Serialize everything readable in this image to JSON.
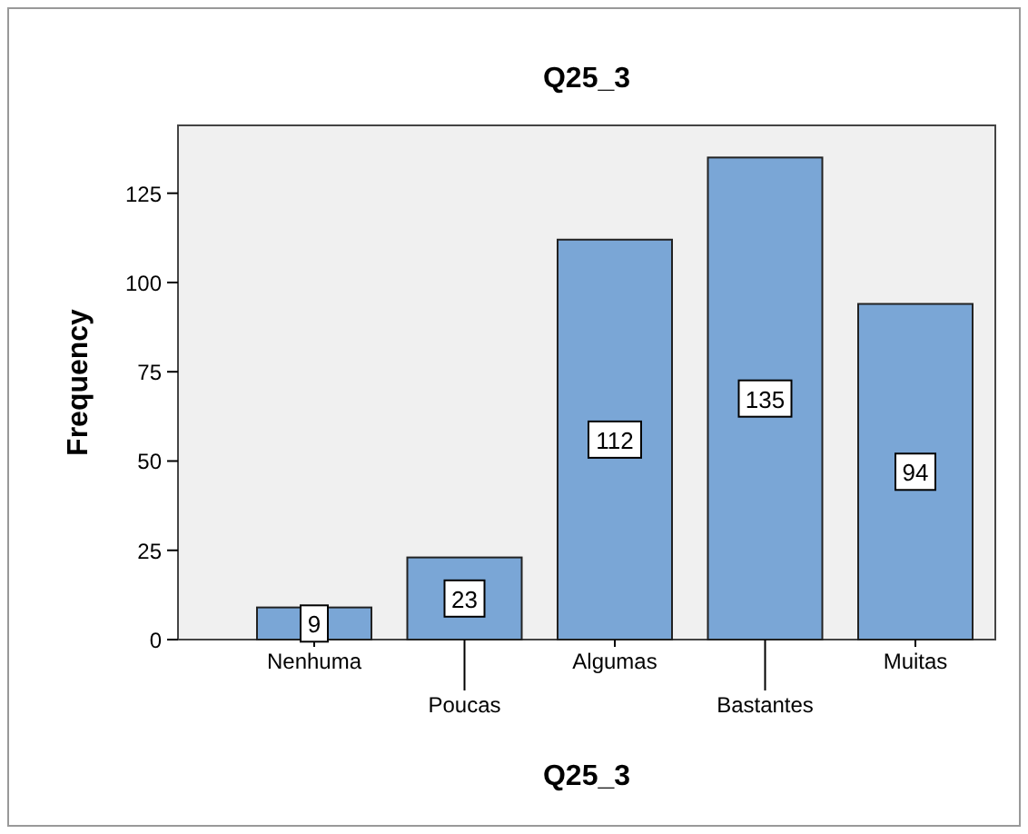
{
  "chart_data": {
    "type": "bar",
    "title": "Q25_3",
    "xlabel": "Q25_3",
    "ylabel": "Frequency",
    "categories": [
      "Nenhuma",
      "Poucas",
      "Algumas",
      "Bastantes",
      "Muitas"
    ],
    "values": [
      9,
      23,
      112,
      135,
      94
    ],
    "color": "#7aa6d6",
    "ylim": [
      0,
      144
    ],
    "yticks": [
      0,
      25,
      50,
      75,
      100,
      125
    ],
    "grid": false,
    "data_labels": true
  }
}
